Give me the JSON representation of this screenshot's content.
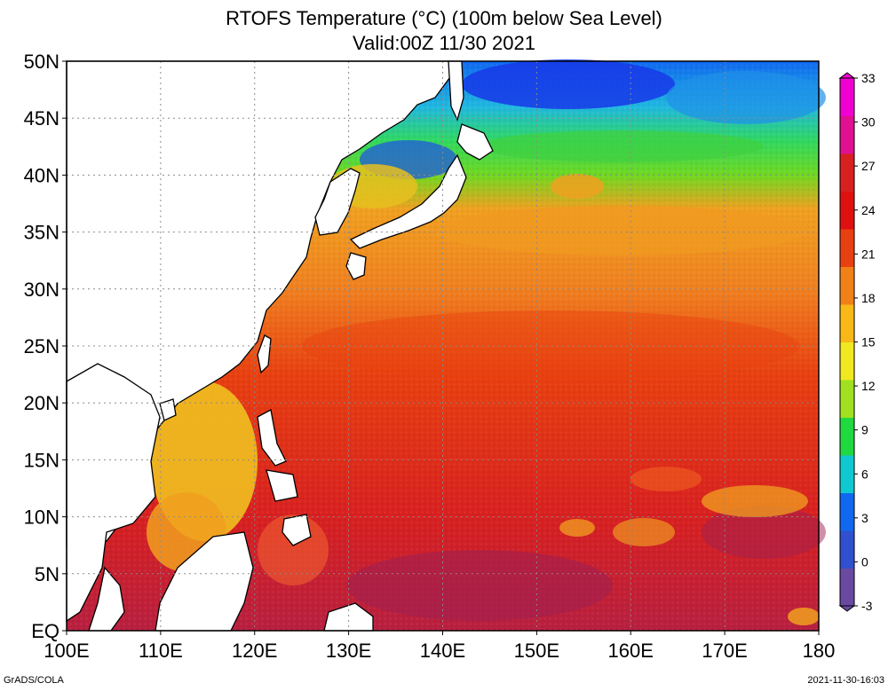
{
  "title": {
    "line1": "RTOFS Temperature (°C) (100m below Sea Level)",
    "line2": "Valid:00Z 11/30 2021"
  },
  "axes": {
    "x_ticks": [
      "100E",
      "110E",
      "120E",
      "130E",
      "140E",
      "150E",
      "160E",
      "170E",
      "180"
    ],
    "y_ticks": [
      "EQ",
      "5N",
      "10N",
      "15N",
      "20N",
      "25N",
      "30N",
      "35N",
      "40N",
      "45N",
      "50N"
    ]
  },
  "colorbar": {
    "ticks": [
      "-3",
      "0",
      "3",
      "6",
      "9",
      "12",
      "15",
      "18",
      "21",
      "24",
      "27",
      "30",
      "33"
    ],
    "colors": [
      "#6a4aa0",
      "#3050d0",
      "#1068f0",
      "#10c8d0",
      "#20d840",
      "#a0e020",
      "#f0e820",
      "#f8b818",
      "#f08018",
      "#e84010",
      "#e01010",
      "#d82020",
      "#e01090",
      "#f000d0"
    ]
  },
  "footer": {
    "left": "GrADS/COLA",
    "right": "2021-11-30-16:03"
  },
  "map": {
    "region": "Western North Pacific",
    "field": "temperature",
    "bands": [
      {
        "lat_from": 0,
        "lat_to": 8,
        "color": "#c02040"
      },
      {
        "lat_from": 8,
        "lat_to": 22,
        "color": "#e82810"
      },
      {
        "lat_from": 22,
        "lat_to": 30,
        "color": "#f05018"
      },
      {
        "lat_from": 30,
        "lat_to": 37,
        "color": "#f49020"
      },
      {
        "lat_from": 37,
        "lat_to": 40,
        "color": "#e8d020"
      },
      {
        "lat_from": 40,
        "lat_to": 43,
        "color": "#50d820"
      },
      {
        "lat_from": 43,
        "lat_to": 46,
        "color": "#20c8b0"
      },
      {
        "lat_from": 46,
        "lat_to": 50,
        "color": "#1068f0"
      }
    ]
  }
}
